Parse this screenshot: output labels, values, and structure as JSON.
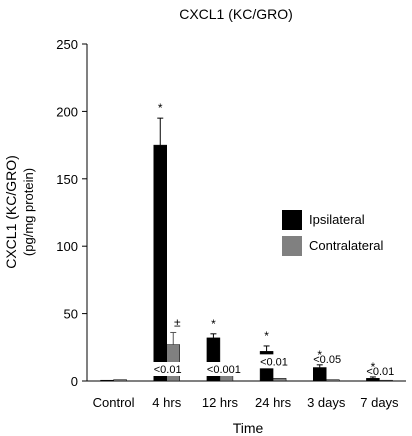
{
  "chart_data": {
    "type": "bar",
    "title": "CXCL1 (KC/GRO)",
    "xlabel": "Time",
    "ylabel_line1": "CXCL1 (KC/GRO)",
    "ylabel_line2": "(pg/mg protein)",
    "ylim": [
      0,
      250
    ],
    "yticks": [
      0,
      50,
      100,
      150,
      200,
      250
    ],
    "grid": false,
    "legend_position": "right",
    "categories": [
      "Control",
      "4 hrs",
      "12 hrs",
      "24 hrs",
      "3 days",
      "7 days"
    ],
    "series": [
      {
        "name": "Ipsilateral",
        "color": "#000000",
        "values": [
          0.5,
          175,
          32,
          22,
          10,
          2
        ],
        "errors": [
          0.3,
          20,
          3,
          4,
          2,
          1
        ],
        "markers": [
          "",
          "*",
          "*",
          "*",
          "*",
          "*"
        ]
      },
      {
        "name": "Contralateral",
        "color": "#808080",
        "values": [
          1,
          27,
          4,
          2,
          1,
          0.5
        ],
        "errors": [
          0.3,
          9,
          1,
          0.5,
          0.3,
          0.2
        ],
        "markers": [
          "",
          "±",
          "",
          "",
          "",
          ""
        ]
      }
    ],
    "p_value_labels": [
      "",
      "<0.01",
      "<0.001",
      "<0.01",
      "<0.05",
      "<0.01"
    ]
  }
}
